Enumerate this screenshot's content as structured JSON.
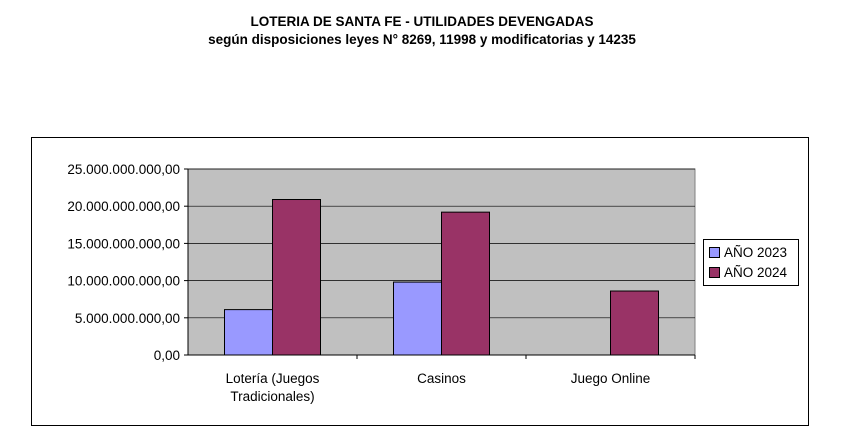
{
  "chart_data": {
    "type": "bar",
    "title": "LOTERIA DE SANTA FE - UTILIDADES DEVENGADAS",
    "subtitle": "según disposiciones leyes N° 8269, 11998 y modificatorias y 14235",
    "categories": [
      [
        "Lotería (Juegos",
        "Tradicionales)"
      ],
      [
        "Casinos"
      ],
      [
        "Juego Online"
      ]
    ],
    "series": [
      {
        "name": "AÑO 2023",
        "color": "#9999ff",
        "values": [
          6100000000,
          9800000000,
          null
        ]
      },
      {
        "name": "AÑO 2024",
        "color": "#993366",
        "values": [
          20900000000,
          19200000000,
          8600000000
        ]
      }
    ],
    "ylim": [
      0,
      25000000000
    ],
    "yticks": [
      0,
      5000000000,
      10000000000,
      15000000000,
      20000000000,
      25000000000
    ],
    "ytick_labels": [
      "0,00",
      "5.000.000.000,00",
      "10.000.000.000,00",
      "15.000.000.000,00",
      "20.000.000.000,00",
      "25.000.000.000,00"
    ],
    "grid": true,
    "plot_background": "#c0c0c0",
    "legend_position": "right"
  }
}
